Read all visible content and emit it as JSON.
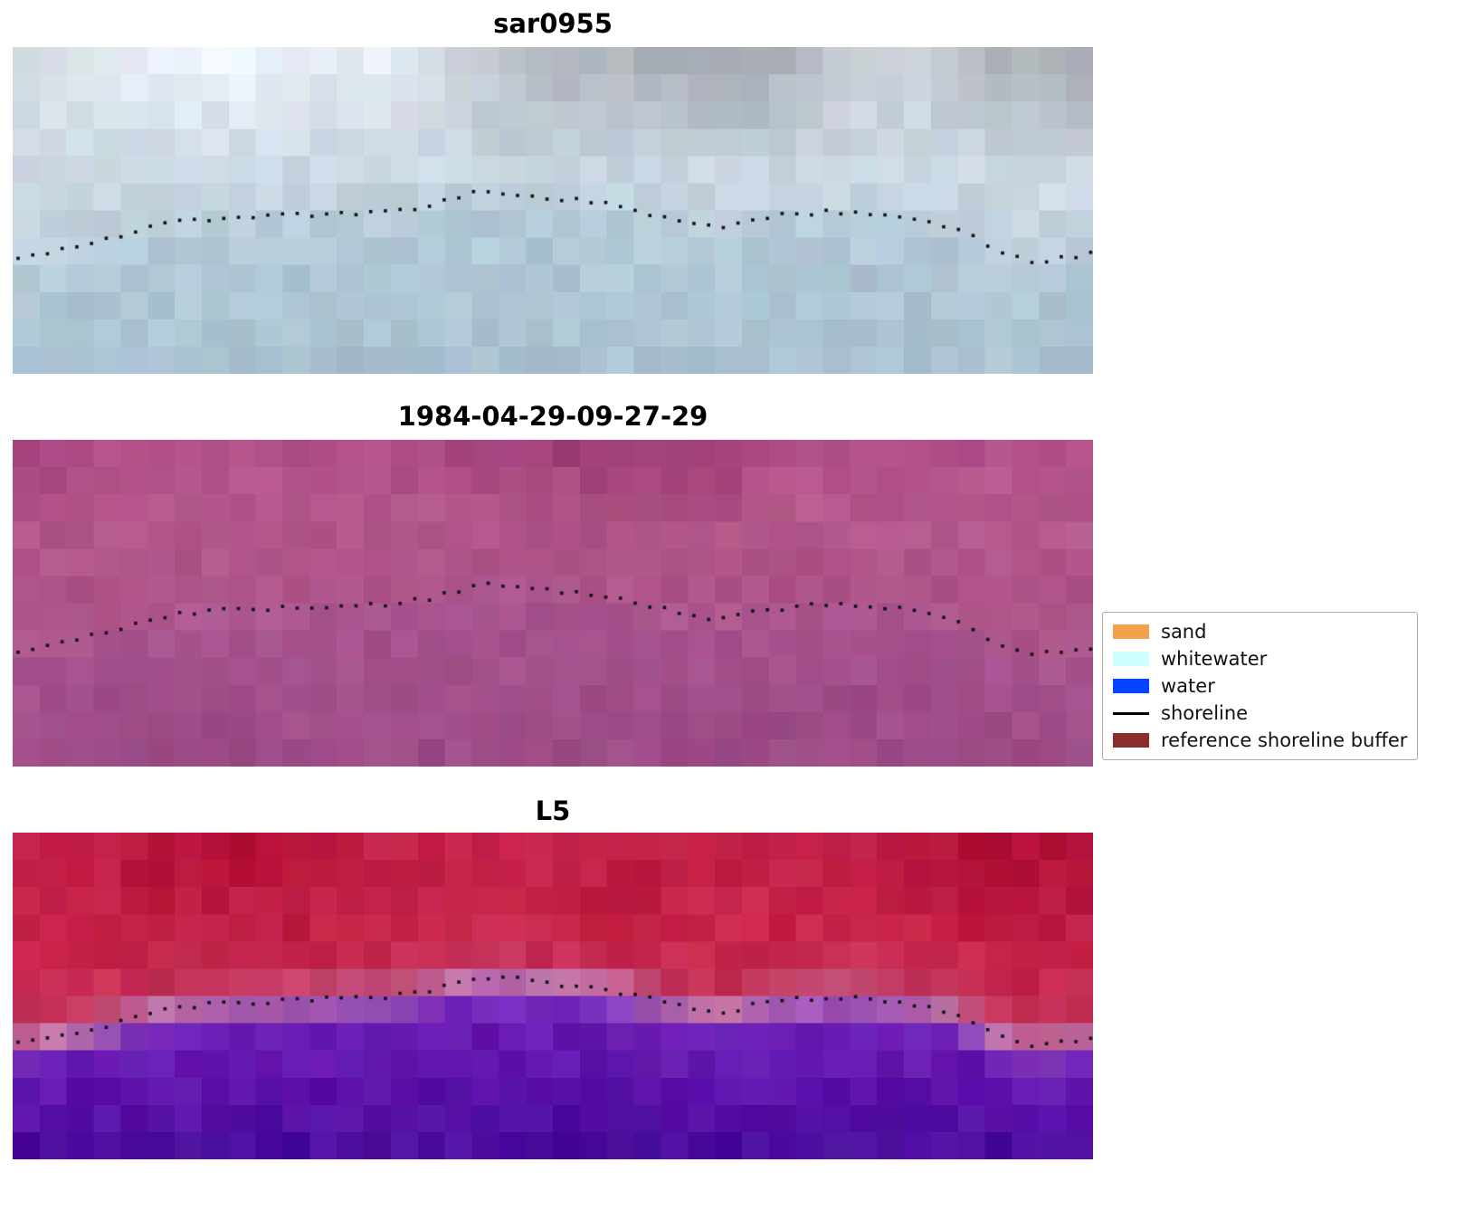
{
  "legend": {
    "items": [
      {
        "label": "sand",
        "type": "patch",
        "color": "#f7a04b"
      },
      {
        "label": "whitewater",
        "type": "patch",
        "color": "#ccffff"
      },
      {
        "label": "water",
        "type": "patch",
        "color": "#0045ff"
      },
      {
        "label": "shoreline",
        "type": "line",
        "color": "#000000"
      },
      {
        "label": "reference shoreline buffer",
        "type": "patch",
        "color": "#8b2d2d"
      }
    ]
  },
  "chart_data": {
    "type": "scatter",
    "description": "Three co-registered coastal satellite image panels (SAR image sar0955, RGB image dated 1984-04-29-09-27-29, and Landsat 5 false-colour composite) shown as pixelated rasters with the same mapped shoreline overlaid as small black dots. A legend identifies classification colours: sand, whitewater, water, shoreline and reference shoreline buffer.",
    "legend_entries": [
      "sand",
      "whitewater",
      "water",
      "shoreline",
      "reference shoreline buffer"
    ],
    "panels": [
      {
        "title": "sar0955",
        "kind": "sar-blue-gray",
        "top_stops": [
          [
            0,
            "#e4eaf1"
          ],
          [
            0.45,
            "#d4dee8"
          ],
          [
            1,
            "#c0d0dc"
          ]
        ],
        "bottom_stops": [
          [
            0,
            "#b6cbd9"
          ],
          [
            0.6,
            "#adc5d3"
          ],
          [
            1,
            "#a9c1d1"
          ]
        ],
        "shore_color": "#e9eff3",
        "shore_mix": 0.1,
        "band": 0.05,
        "noise": 9,
        "cloud_amp": 27
      },
      {
        "title": "1984-04-29-09-27-29",
        "kind": "rgb-magenta",
        "top_stops": [
          [
            0,
            "#a84680"
          ],
          [
            0.45,
            "#b25689"
          ],
          [
            1,
            "#ad5388"
          ]
        ],
        "bottom_stops": [
          [
            0,
            "#aa5590"
          ],
          [
            1,
            "#9b4a85"
          ]
        ],
        "shore_color": "#bb6d9c",
        "shore_mix": 0.15,
        "band": 0.05,
        "noise": 7,
        "cloud_amp": 12
      },
      {
        "title": "L5",
        "kind": "false-colour-red-purple",
        "top_stops": [
          [
            0,
            "#c01d44"
          ],
          [
            0.6,
            "#c52248"
          ],
          [
            1,
            "#c23a60"
          ]
        ],
        "bottom_stops": [
          [
            0,
            "#8038c4"
          ],
          [
            0.25,
            "#6a1cb4"
          ],
          [
            0.6,
            "#5a10a8"
          ],
          [
            1,
            "#470c9b"
          ]
        ],
        "shore_color": "#d6a2bd",
        "shore_mix": 0.55,
        "band": 0.07,
        "noise": 10,
        "cloud_amp": 10
      }
    ],
    "shoreline_points_normalized": [
      [
        0.0,
        0.65
      ],
      [
        0.02,
        0.641
      ],
      [
        0.04,
        0.628
      ],
      [
        0.06,
        0.612
      ],
      [
        0.08,
        0.595
      ],
      [
        0.1,
        0.578
      ],
      [
        0.12,
        0.558
      ],
      [
        0.14,
        0.543
      ],
      [
        0.16,
        0.532
      ],
      [
        0.185,
        0.524
      ],
      [
        0.21,
        0.52
      ],
      [
        0.24,
        0.517
      ],
      [
        0.27,
        0.513
      ],
      [
        0.3,
        0.509
      ],
      [
        0.33,
        0.505
      ],
      [
        0.355,
        0.5
      ],
      [
        0.375,
        0.492
      ],
      [
        0.395,
        0.478
      ],
      [
        0.41,
        0.462
      ],
      [
        0.425,
        0.45
      ],
      [
        0.44,
        0.444
      ],
      [
        0.455,
        0.446
      ],
      [
        0.475,
        0.452
      ],
      [
        0.495,
        0.46
      ],
      [
        0.515,
        0.466
      ],
      [
        0.535,
        0.473
      ],
      [
        0.555,
        0.484
      ],
      [
        0.575,
        0.497
      ],
      [
        0.595,
        0.513
      ],
      [
        0.615,
        0.53
      ],
      [
        0.635,
        0.546
      ],
      [
        0.65,
        0.554
      ],
      [
        0.665,
        0.546
      ],
      [
        0.68,
        0.53
      ],
      [
        0.695,
        0.521
      ],
      [
        0.715,
        0.514
      ],
      [
        0.735,
        0.509
      ],
      [
        0.755,
        0.505
      ],
      [
        0.775,
        0.507
      ],
      [
        0.795,
        0.511
      ],
      [
        0.815,
        0.516
      ],
      [
        0.835,
        0.524
      ],
      [
        0.855,
        0.538
      ],
      [
        0.875,
        0.561
      ],
      [
        0.895,
        0.592
      ],
      [
        0.912,
        0.622
      ],
      [
        0.928,
        0.645
      ],
      [
        0.944,
        0.654
      ],
      [
        0.96,
        0.65
      ],
      [
        0.978,
        0.64
      ],
      [
        1.0,
        0.633
      ]
    ]
  }
}
